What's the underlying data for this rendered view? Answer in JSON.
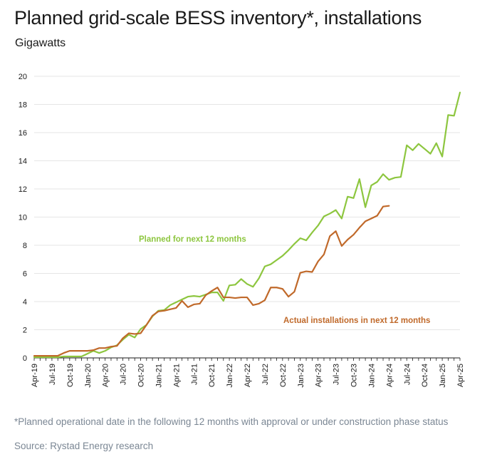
{
  "title": "Planned grid-scale BESS inventory*, installations",
  "subtitle": "Gigawatts",
  "footnote": "*Planned operational date in the following 12 months with approval or under construction phase status",
  "source": "Source: Rystad Energy research",
  "chart_data": {
    "type": "line",
    "ylim": [
      0,
      20
    ],
    "yticks": [
      0,
      2,
      4,
      6,
      8,
      10,
      12,
      14,
      16,
      18,
      20
    ],
    "x_tick_labels": [
      "Apr-19",
      "Jul-19",
      "Oct-19",
      "Jan-20",
      "Apr-20",
      "Jul-20",
      "Oct-20",
      "Jan-21",
      "Apr-21",
      "Jul-21",
      "Oct-21",
      "Jan-22",
      "Apr-22",
      "Jul-22",
      "Oct-22",
      "Jan-23",
      "Apr-23",
      "Jul-23",
      "Oct-23",
      "Jan-24",
      "Apr-24",
      "Jul-24",
      "Oct-24",
      "Jan-25",
      "Apr-25"
    ],
    "x_start": "Apr-19",
    "x_end": "Apr-25",
    "grid": true,
    "legend": "inline labels",
    "series": [
      {
        "name": "Planned for next 12 months",
        "color": "#8dc63f",
        "values": [
          0.05,
          0.05,
          0.05,
          0.05,
          0.05,
          0.1,
          0.1,
          0.1,
          0.1,
          0.3,
          0.5,
          0.35,
          0.5,
          0.75,
          0.9,
          1.3,
          1.65,
          1.45,
          2.05,
          2.35,
          2.95,
          3.35,
          3.4,
          3.75,
          3.95,
          4.15,
          4.35,
          4.4,
          4.35,
          4.5,
          4.65,
          4.65,
          4.05,
          5.15,
          5.2,
          5.6,
          5.25,
          5.05,
          5.65,
          6.5,
          6.65,
          6.95,
          7.25,
          7.65,
          8.1,
          8.5,
          8.35,
          8.9,
          9.4,
          10.05,
          10.25,
          10.5,
          9.9,
          11.45,
          11.35,
          12.7,
          10.7,
          12.25,
          12.5,
          13.05,
          12.65,
          12.8,
          12.85,
          15.1,
          14.75,
          15.2,
          14.85,
          14.5,
          15.25,
          14.3,
          17.25,
          17.2,
          18.85
        ]
      },
      {
        "name": "Actual installations in next 12 months",
        "color": "#c0692a",
        "values": [
          0.15,
          0.15,
          0.15,
          0.15,
          0.15,
          0.35,
          0.5,
          0.5,
          0.5,
          0.5,
          0.55,
          0.7,
          0.7,
          0.8,
          0.85,
          1.4,
          1.75,
          1.7,
          1.75,
          2.35,
          3.0,
          3.3,
          3.35,
          3.45,
          3.55,
          4.05,
          3.6,
          3.8,
          3.85,
          4.45,
          4.75,
          5.0,
          4.3,
          4.3,
          4.25,
          4.3,
          4.3,
          3.75,
          3.85,
          4.1,
          5.0,
          5.0,
          4.9,
          4.35,
          4.7,
          6.05,
          6.15,
          6.1,
          6.85,
          7.35,
          8.65,
          9.0,
          7.95,
          8.4,
          8.75,
          9.25,
          9.7,
          9.9,
          10.1,
          10.75,
          10.8
        ]
      }
    ],
    "annotations": [
      "Planned for next 12 months",
      "Actual installations in next 12 months"
    ]
  }
}
